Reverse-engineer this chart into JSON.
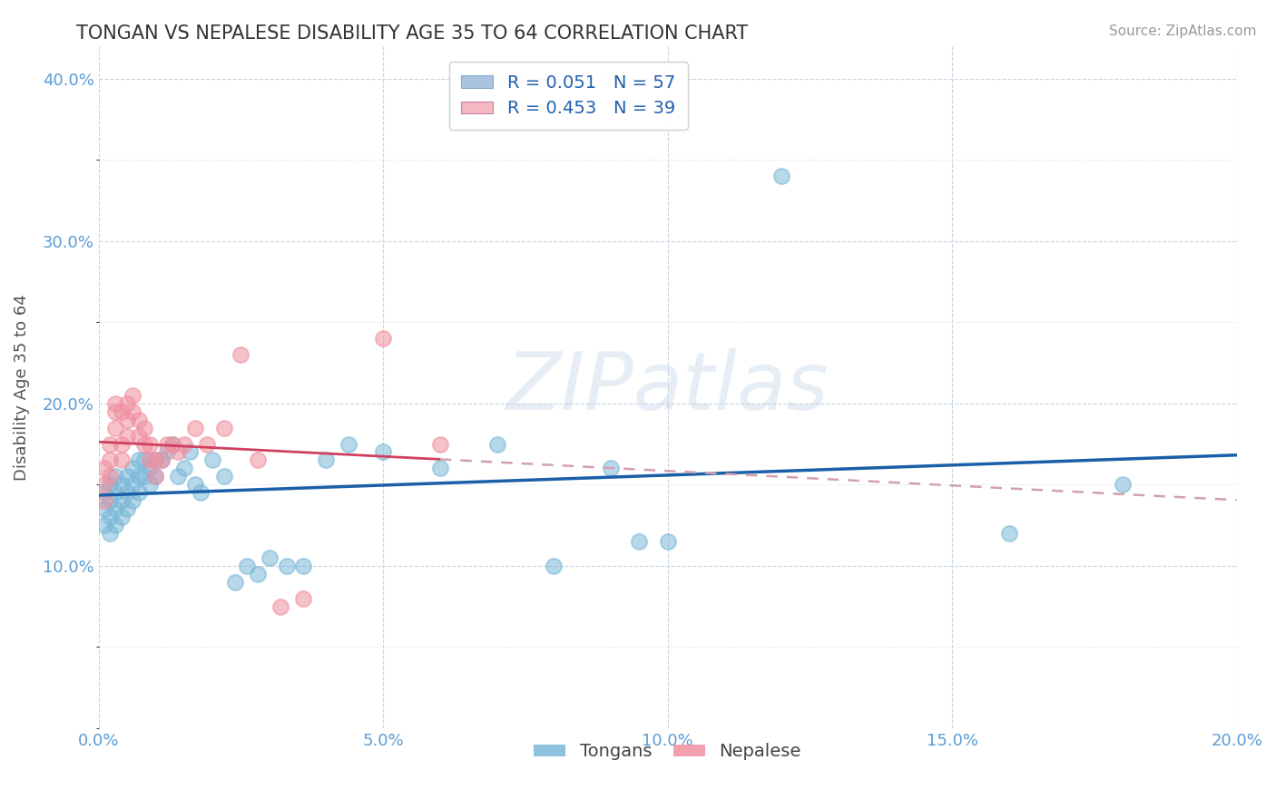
{
  "title": "TONGAN VS NEPALESE DISABILITY AGE 35 TO 64 CORRELATION CHART",
  "source_text": "Source: ZipAtlas.com",
  "ylabel": "Disability Age 35 to 64",
  "xlim": [
    0.0,
    0.2
  ],
  "ylim": [
    0.0,
    0.42
  ],
  "xticks": [
    0.0,
    0.05,
    0.1,
    0.15,
    0.2
  ],
  "yticks": [
    0.1,
    0.2,
    0.3,
    0.4
  ],
  "legend_entries": [
    {
      "label": "R = 0.051   N = 57",
      "color": "#a8c4e0"
    },
    {
      "label": "R = 0.453   N = 39",
      "color": "#f4b8c0"
    }
  ],
  "legend_bottom": [
    "Tongans",
    "Nepalese"
  ],
  "tongans_color": "#7ab8d8",
  "nepalese_color": "#f090a0",
  "tongans_line_color": "#1a5fa8",
  "nepalese_line_color": "#d04060",
  "nepalese_line_ext_color": "#e8b0bc",
  "watermark": "ZIPatlas",
  "tongans_x": [
    0.001,
    0.001,
    0.001,
    0.002,
    0.002,
    0.002,
    0.002,
    0.003,
    0.003,
    0.003,
    0.003,
    0.004,
    0.004,
    0.004,
    0.005,
    0.005,
    0.005,
    0.006,
    0.006,
    0.006,
    0.007,
    0.007,
    0.007,
    0.008,
    0.008,
    0.009,
    0.009,
    0.01,
    0.01,
    0.011,
    0.012,
    0.013,
    0.014,
    0.015,
    0.016,
    0.017,
    0.018,
    0.02,
    0.022,
    0.024,
    0.026,
    0.028,
    0.03,
    0.033,
    0.036,
    0.04,
    0.044,
    0.05,
    0.06,
    0.07,
    0.08,
    0.09,
    0.095,
    0.1,
    0.12,
    0.16,
    0.18
  ],
  "tongans_y": [
    0.145,
    0.135,
    0.125,
    0.15,
    0.14,
    0.13,
    0.12,
    0.155,
    0.145,
    0.135,
    0.125,
    0.15,
    0.14,
    0.13,
    0.155,
    0.145,
    0.135,
    0.16,
    0.15,
    0.14,
    0.165,
    0.155,
    0.145,
    0.165,
    0.155,
    0.16,
    0.15,
    0.165,
    0.155,
    0.165,
    0.17,
    0.175,
    0.155,
    0.16,
    0.17,
    0.15,
    0.145,
    0.165,
    0.155,
    0.09,
    0.1,
    0.095,
    0.105,
    0.1,
    0.1,
    0.165,
    0.175,
    0.17,
    0.16,
    0.175,
    0.1,
    0.16,
    0.115,
    0.115,
    0.34,
    0.12,
    0.15
  ],
  "nepalese_x": [
    0.001,
    0.001,
    0.001,
    0.002,
    0.002,
    0.002,
    0.003,
    0.003,
    0.003,
    0.004,
    0.004,
    0.004,
    0.005,
    0.005,
    0.005,
    0.006,
    0.006,
    0.007,
    0.007,
    0.008,
    0.008,
    0.009,
    0.009,
    0.01,
    0.01,
    0.011,
    0.012,
    0.013,
    0.014,
    0.015,
    0.017,
    0.019,
    0.022,
    0.025,
    0.028,
    0.032,
    0.036,
    0.05,
    0.06
  ],
  "nepalese_y": [
    0.15,
    0.16,
    0.14,
    0.155,
    0.165,
    0.175,
    0.2,
    0.195,
    0.185,
    0.195,
    0.175,
    0.165,
    0.2,
    0.19,
    0.18,
    0.205,
    0.195,
    0.19,
    0.18,
    0.185,
    0.175,
    0.175,
    0.165,
    0.165,
    0.155,
    0.165,
    0.175,
    0.175,
    0.17,
    0.175,
    0.185,
    0.175,
    0.185,
    0.23,
    0.165,
    0.075,
    0.08,
    0.24,
    0.175
  ]
}
